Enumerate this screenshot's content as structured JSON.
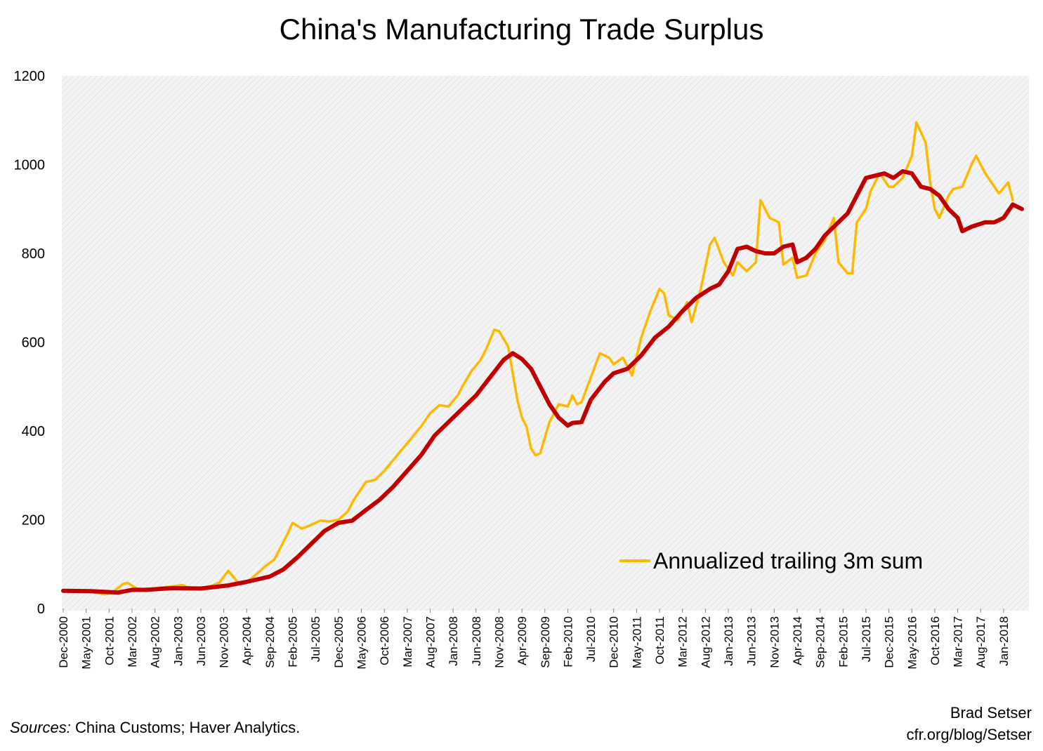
{
  "chart_data": {
    "type": "line",
    "title": "China's Manufacturing Trade Surplus",
    "ylim": [
      0,
      1200
    ],
    "y_ticks": [
      "0",
      "200",
      "400",
      "600",
      "800",
      "1000",
      "1200"
    ],
    "x_tick_labels": [
      "Dec-2000",
      "May-2001",
      "Oct-2001",
      "Mar-2002",
      "Aug-2002",
      "Jan-2003",
      "Jun-2003",
      "Nov-2003",
      "Apr-2004",
      "Sep-2004",
      "Feb-2005",
      "Jul-2005",
      "Dec-2005",
      "May-2006",
      "Oct-2006",
      "Mar-2007",
      "Aug-2007",
      "Jan-2008",
      "Jun-2008",
      "Nov-2008",
      "Apr-2009",
      "Sep-2009",
      "Feb-2010",
      "Jul-2010",
      "Dec-2010",
      "May-2011",
      "Oct-2011",
      "Mar-2012",
      "Aug-2012",
      "Jan-2013",
      "Jun-2013",
      "Nov-2013",
      "Apr-2014",
      "Sep-2014",
      "Feb-2015",
      "Jul-2015",
      "Dec-2015",
      "May-2016",
      "Oct-2016",
      "Mar-2017",
      "Aug-2017",
      "Jan-2018"
    ],
    "x_start": "Dec-2000",
    "x_end": "May-2018",
    "grid": false,
    "legend_position": "lower-right",
    "series": [
      {
        "name": "Annualized trailing 3m sum",
        "color": "#FFB800",
        "points": [
          [
            "Dec-2000",
            40
          ],
          [
            "Mar-2001",
            40
          ],
          [
            "Jun-2001",
            38
          ],
          [
            "Sep-2001",
            32
          ],
          [
            "Nov-2001",
            38
          ],
          [
            "Jan-2002",
            55
          ],
          [
            "Feb-2002",
            58
          ],
          [
            "Apr-2002",
            45
          ],
          [
            "Jun-2002",
            42
          ],
          [
            "Sep-2002",
            47
          ],
          [
            "Dec-2002",
            50
          ],
          [
            "Feb-2003",
            53
          ],
          [
            "Apr-2003",
            43
          ],
          [
            "Aug-2003",
            50
          ],
          [
            "Oct-2003",
            58
          ],
          [
            "Dec-2003",
            85
          ],
          [
            "Feb-2004",
            60
          ],
          [
            "Mar-2004",
            57
          ],
          [
            "May-2004",
            67
          ],
          [
            "Jul-2004",
            85
          ],
          [
            "Aug-2004",
            95
          ],
          [
            "Oct-2004",
            110
          ],
          [
            "Nov-2004",
            130
          ],
          [
            "Jan-2005",
            170
          ],
          [
            "Feb-2005",
            193
          ],
          [
            "Apr-2005",
            180
          ],
          [
            "Jun-2005",
            188
          ],
          [
            "Aug-2005",
            198
          ],
          [
            "Oct-2005",
            196
          ],
          [
            "Dec-2005",
            200
          ],
          [
            "Feb-2006",
            218
          ],
          [
            "Mar-2006",
            238
          ],
          [
            "Apr-2006",
            255
          ],
          [
            "Jun-2006",
            285
          ],
          [
            "Aug-2006",
            290
          ],
          [
            "Oct-2006",
            310
          ],
          [
            "Dec-2006",
            335
          ],
          [
            "Feb-2007",
            360
          ],
          [
            "Apr-2007",
            385
          ],
          [
            "Jun-2007",
            410
          ],
          [
            "Aug-2007",
            440
          ],
          [
            "Oct-2007",
            458
          ],
          [
            "Dec-2007",
            455
          ],
          [
            "Feb-2008",
            480
          ],
          [
            "Mar-2008",
            500
          ],
          [
            "May-2008",
            535
          ],
          [
            "Jul-2008",
            560
          ],
          [
            "Aug-2008",
            580
          ],
          [
            "Oct-2008",
            628
          ],
          [
            "Nov-2008",
            625
          ],
          [
            "Jan-2009",
            590
          ],
          [
            "Feb-2009",
            530
          ],
          [
            "Mar-2009",
            470
          ],
          [
            "Apr-2009",
            430
          ],
          [
            "May-2009",
            410
          ],
          [
            "Jun-2009",
            360
          ],
          [
            "Jul-2009",
            345
          ],
          [
            "Aug-2009",
            350
          ],
          [
            "Oct-2009",
            420
          ],
          [
            "Dec-2009",
            460
          ],
          [
            "Feb-2010",
            455
          ],
          [
            "Mar-2010",
            480
          ],
          [
            "Apr-2010",
            460
          ],
          [
            "May-2010",
            465
          ],
          [
            "Jul-2010",
            520
          ],
          [
            "Sep-2010",
            575
          ],
          [
            "Nov-2010",
            565
          ],
          [
            "Dec-2010",
            550
          ],
          [
            "Feb-2011",
            565
          ],
          [
            "Apr-2011",
            525
          ],
          [
            "Jun-2011",
            610
          ],
          [
            "Aug-2011",
            670
          ],
          [
            "Oct-2011",
            720
          ],
          [
            "Nov-2011",
            710
          ],
          [
            "Dec-2011",
            660
          ],
          [
            "Feb-2012",
            650
          ],
          [
            "Apr-2012",
            690
          ],
          [
            "May-2012",
            645
          ],
          [
            "Jul-2012",
            720
          ],
          [
            "Sep-2012",
            820
          ],
          [
            "Oct-2012",
            835
          ],
          [
            "Dec-2012",
            780
          ],
          [
            "Feb-2013",
            750
          ],
          [
            "Mar-2013",
            780
          ],
          [
            "May-2013",
            760
          ],
          [
            "Jul-2013",
            780
          ],
          [
            "Aug-2013",
            920
          ],
          [
            "Oct-2013",
            880
          ],
          [
            "Dec-2013",
            870
          ],
          [
            "Jan-2014",
            775
          ],
          [
            "Mar-2014",
            790
          ],
          [
            "Apr-2014",
            745
          ],
          [
            "Jun-2014",
            750
          ],
          [
            "Aug-2014",
            800
          ],
          [
            "Oct-2014",
            830
          ],
          [
            "Dec-2014",
            880
          ],
          [
            "Jan-2015",
            780
          ],
          [
            "Mar-2015",
            755
          ],
          [
            "Apr-2015",
            755
          ],
          [
            "May-2015",
            870
          ],
          [
            "Jul-2015",
            900
          ],
          [
            "Aug-2015",
            940
          ],
          [
            "Oct-2015",
            980
          ],
          [
            "Dec-2015",
            950
          ],
          [
            "Jan-2016",
            950
          ],
          [
            "Mar-2016",
            970
          ],
          [
            "May-2016",
            1020
          ],
          [
            "Jun-2016",
            1095
          ],
          [
            "Aug-2016",
            1050
          ],
          [
            "Sep-2016",
            960
          ],
          [
            "Oct-2016",
            900
          ],
          [
            "Nov-2016",
            880
          ],
          [
            "Jan-2017",
            930
          ],
          [
            "Feb-2017",
            945
          ],
          [
            "Apr-2017",
            950
          ],
          [
            "Jun-2017",
            1000
          ],
          [
            "Jul-2017",
            1020
          ],
          [
            "Sep-2017",
            980
          ],
          [
            "Nov-2017",
            950
          ],
          [
            "Dec-2017",
            935
          ],
          [
            "Feb-2018",
            960
          ],
          [
            "Mar-2018",
            920
          ]
        ]
      },
      {
        "name": "",
        "color": "#C00000",
        "points": [
          [
            "Dec-2000",
            40
          ],
          [
            "Jun-2001",
            39
          ],
          [
            "Dec-2001",
            36
          ],
          [
            "Mar-2002",
            42
          ],
          [
            "Jun-2002",
            42
          ],
          [
            "Dec-2002",
            46
          ],
          [
            "Jun-2003",
            45
          ],
          [
            "Dec-2003",
            52
          ],
          [
            "Apr-2004",
            60
          ],
          [
            "Sep-2004",
            72
          ],
          [
            "Dec-2004",
            88
          ],
          [
            "Mar-2005",
            115
          ],
          [
            "Jun-2005",
            145
          ],
          [
            "Sep-2005",
            175
          ],
          [
            "Dec-2005",
            193
          ],
          [
            "Mar-2006",
            198
          ],
          [
            "Jun-2006",
            222
          ],
          [
            "Sep-2006",
            245
          ],
          [
            "Dec-2006",
            275
          ],
          [
            "Mar-2007",
            310
          ],
          [
            "Jun-2007",
            345
          ],
          [
            "Sep-2007",
            390
          ],
          [
            "Dec-2007",
            420
          ],
          [
            "Mar-2008",
            450
          ],
          [
            "Jun-2008",
            480
          ],
          [
            "Sep-2008",
            520
          ],
          [
            "Dec-2008",
            560
          ],
          [
            "Feb-2009",
            575
          ],
          [
            "Apr-2009",
            562
          ],
          [
            "Jun-2009",
            540
          ],
          [
            "Aug-2009",
            500
          ],
          [
            "Oct-2009",
            460
          ],
          [
            "Dec-2009",
            430
          ],
          [
            "Feb-2010",
            412
          ],
          [
            "Mar-2010",
            418
          ],
          [
            "May-2010",
            420
          ],
          [
            "Jul-2010",
            470
          ],
          [
            "Oct-2010",
            510
          ],
          [
            "Dec-2010",
            530
          ],
          [
            "Mar-2011",
            540
          ],
          [
            "Jun-2011",
            570
          ],
          [
            "Sep-2011",
            610
          ],
          [
            "Dec-2011",
            635
          ],
          [
            "Mar-2012",
            670
          ],
          [
            "Jun-2012",
            700
          ],
          [
            "Sep-2012",
            720
          ],
          [
            "Nov-2012",
            730
          ],
          [
            "Jan-2013",
            760
          ],
          [
            "Mar-2013",
            810
          ],
          [
            "May-2013",
            815
          ],
          [
            "Jul-2013",
            805
          ],
          [
            "Sep-2013",
            800
          ],
          [
            "Nov-2013",
            800
          ],
          [
            "Jan-2014",
            815
          ],
          [
            "Mar-2014",
            820
          ],
          [
            "Apr-2014",
            780
          ],
          [
            "Jun-2014",
            790
          ],
          [
            "Aug-2014",
            810
          ],
          [
            "Oct-2014",
            840
          ],
          [
            "Jan-2015",
            870
          ],
          [
            "Mar-2015",
            890
          ],
          [
            "May-2015",
            930
          ],
          [
            "Jul-2015",
            970
          ],
          [
            "Sep-2015",
            975
          ],
          [
            "Nov-2015",
            980
          ],
          [
            "Jan-2016",
            970
          ],
          [
            "Mar-2016",
            985
          ],
          [
            "May-2016",
            980
          ],
          [
            "Jul-2016",
            950
          ],
          [
            "Sep-2016",
            945
          ],
          [
            "Nov-2016",
            930
          ],
          [
            "Jan-2017",
            900
          ],
          [
            "Mar-2017",
            880
          ],
          [
            "Apr-2017",
            850
          ],
          [
            "Jun-2017",
            860
          ],
          [
            "Sep-2017",
            870
          ],
          [
            "Nov-2017",
            870
          ],
          [
            "Jan-2018",
            880
          ],
          [
            "Mar-2018",
            910
          ],
          [
            "May-2018",
            900
          ]
        ]
      }
    ]
  },
  "footer": {
    "sources_label": "Sources:",
    "sources_text": " China Customs; Haver Analytics.",
    "credit_name": "Brad Setser",
    "credit_url": "cfr.org/blog/Setser"
  }
}
